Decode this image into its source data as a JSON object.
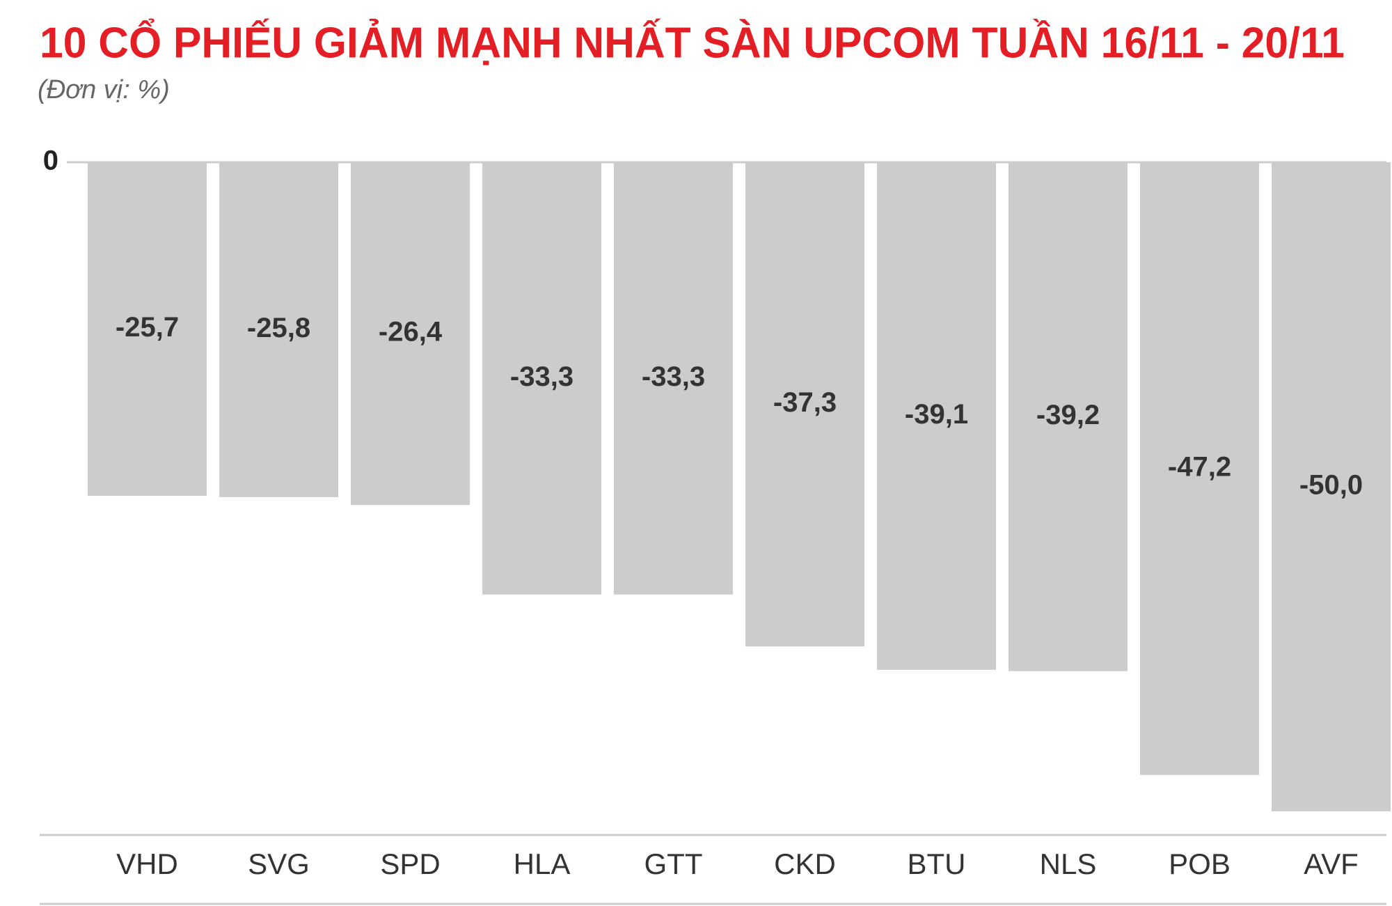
{
  "chart_data": {
    "type": "bar",
    "title": "10 CỔ PHIẾU GIẢM MẠNH NHẤT SÀN UPCOM TUẦN 16/11 - 20/11",
    "subtitle": "(Đơn vị: %)",
    "categories": [
      "VHD",
      "SVG",
      "SPD",
      "HLA",
      "GTT",
      "CKD",
      "BTU",
      "NLS",
      "POB",
      "AVF"
    ],
    "values": [
      -25.7,
      -25.8,
      -26.4,
      -33.3,
      -33.3,
      -37.3,
      -39.1,
      -39.2,
      -47.2,
      -50.0
    ],
    "value_labels": [
      "-25,7",
      "-25,8",
      "-26,4",
      "-33,3",
      "-33,3",
      "-37,3",
      "-39,1",
      "-39,2",
      "-47,2",
      "-50,0"
    ],
    "color": "#cccccc",
    "ylim": [
      -50,
      0
    ],
    "yticks": [
      0
    ]
  }
}
